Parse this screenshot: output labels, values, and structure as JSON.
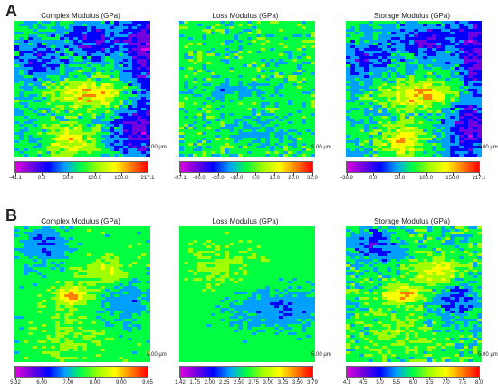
{
  "panels": [
    {
      "label": "A",
      "maps": [
        {
          "title": "Complex Modulus (GPa)",
          "scale": "5.00 µm",
          "ticks": [
            "-41.1",
            "0.0",
            "50.0",
            "100.0",
            "150.0",
            "217.1"
          ]
        },
        {
          "title": "Loss Modulus (GPa)",
          "scale": "5.00 µm",
          "ticks": [
            "-37.1",
            "-30.0",
            "-20.0",
            "-10.0",
            "0.0",
            "10.0",
            "20.0",
            "32.0"
          ]
        },
        {
          "title": "Storage Modulus (GPa)",
          "scale": "5.00 µm",
          "ticks": [
            "-38.9",
            "0.0",
            "50.0",
            "100.0",
            "150.0",
            "217.1"
          ]
        }
      ]
    },
    {
      "label": "B",
      "maps": [
        {
          "title": "Complex Modulus (GPa)",
          "scale": "5.00 µm",
          "ticks": [
            "5.32",
            "6.00",
            "7.00",
            "8.00",
            "9.00",
            "9.65"
          ]
        },
        {
          "title": "Loss Modulus (GPa)",
          "scale": "5.00 µm",
          "ticks": [
            "1.42",
            "1.75",
            "2.00",
            "2.25",
            "2.50",
            "2.75",
            "3.00",
            "3.25",
            "3.50",
            "3.79"
          ]
        },
        {
          "title": "Storage Modulus (GPa)",
          "scale": "5.00 µm",
          "ticks": [
            "4.1",
            "4.5",
            "5.0",
            "5.5",
            "6.0",
            "6.5",
            "7.0",
            "7.5",
            "8.0"
          ]
        }
      ]
    }
  ],
  "colors": {
    "colormap": [
      "#e000e0",
      "#7000e0",
      "#0000ff",
      "#00a0ff",
      "#00ff40",
      "#a0ff00",
      "#ffff00",
      "#ff8000",
      "#ff0000"
    ]
  }
}
